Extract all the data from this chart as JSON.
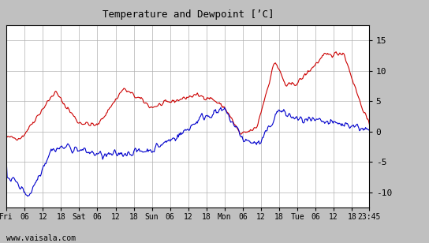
{
  "title": "Temperature and Dewpoint [’C]",
  "ylabel_right_ticks": [
    -10,
    -5,
    0,
    5,
    10,
    15
  ],
  "ylim": [
    -12.5,
    17.5
  ],
  "xlabel_bottom": "www.vaisala.com",
  "xtick_labels": [
    "Fri",
    "06",
    "12",
    "18",
    "Sat",
    "06",
    "12",
    "18",
    "Sun",
    "06",
    "12",
    "18",
    "Mon",
    "06",
    "12",
    "18",
    "Tue",
    "06",
    "12",
    "23:45"
  ],
  "temp_color": "#cc0000",
  "dew_color": "#0000cc",
  "bg_color": "#c0c0c0",
  "plot_bg": "#ffffff",
  "grid_color": "#b0b0b0",
  "line_width": 0.8,
  "font_name": "DejaVu Sans Mono",
  "fig_width": 5.44,
  "fig_height": 3.08,
  "dpi": 100
}
